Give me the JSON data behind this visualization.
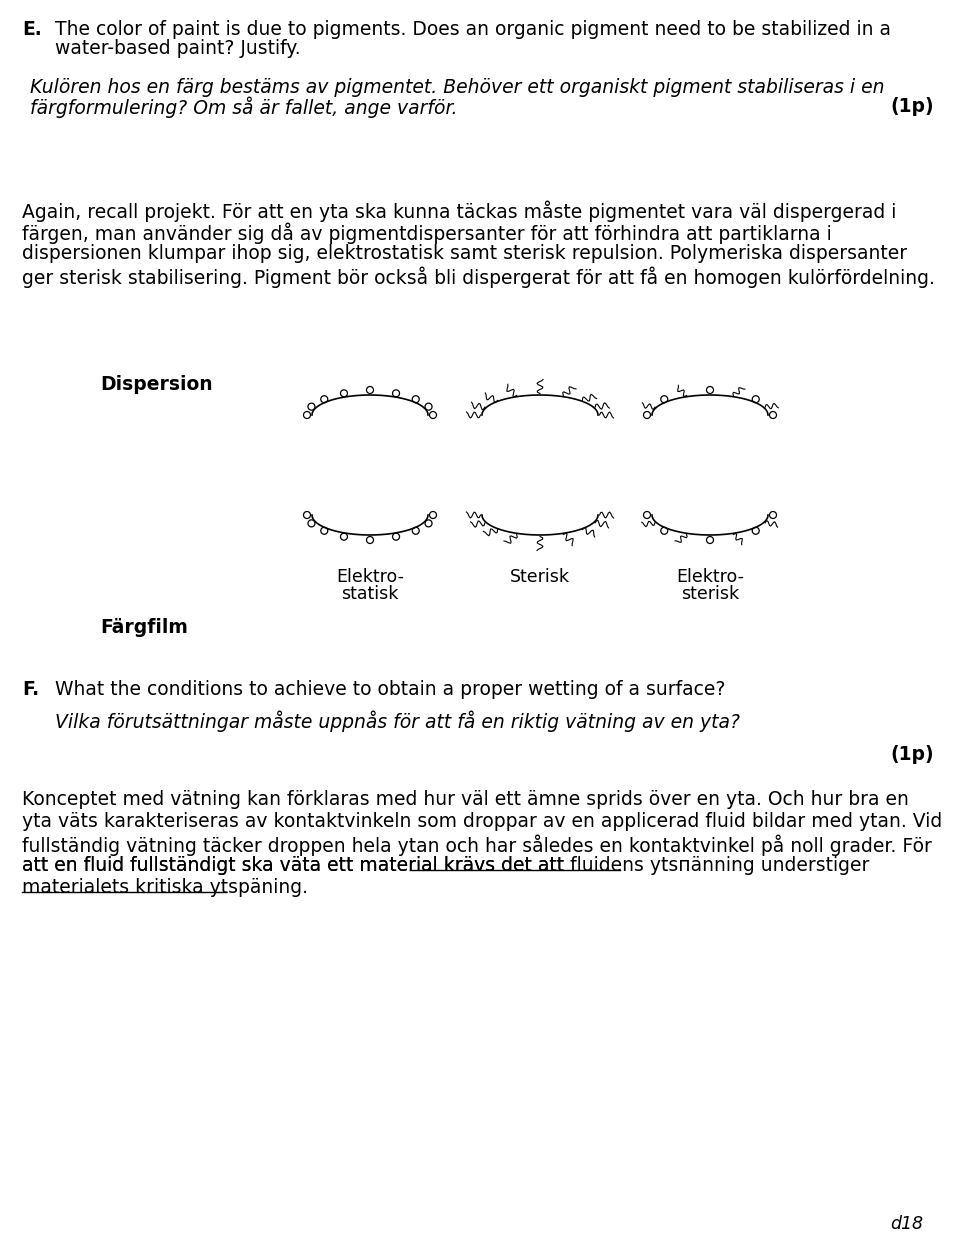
{
  "bg_color": "#ffffff",
  "section_E_label": "E.",
  "section_E_english_line1": "The color of paint is due to pigments. Does an organic pigment need to be stabilized in a",
  "section_E_english_line2": "water-based paint? Justify.",
  "section_E_swedish_line1": "Kulören hos en färg bestäms av pigmentet. Behöver ett organiskt pigment stabiliseras i en",
  "section_E_swedish_line2": "färgformulering? Om så är fallet, ange varför.",
  "section_E_points": "(1p)",
  "answer_line1": "Again, recall projekt. För att en yta ska kunna täckas måste pigmentet vara väl dispergerad i",
  "answer_line2": "färgen, man använder sig då av pigmentdispersanter för att förhindra att partiklarna i",
  "answer_line3": "dispersionen klumpar ihop sig, elektrostatisk samt sterisk repulsion. Polymeriska dispersanter",
  "answer_line4": "ger sterisk stabilisering. Pigment bör också bli dispergerat för att få en homogen kulörfördelning.",
  "dispersion_label": "Dispersion",
  "fargfilm_label": "Färgfilm",
  "label_elektrostatisk_1": "Elektro-",
  "label_elektrostatisk_2": "statisk",
  "label_sterisk": "Sterisk",
  "label_elektrosterisk_1": "Elektro-",
  "label_elektrosterisk_2": "sterisk",
  "section_F_label": "F.",
  "section_F_english": "What the conditions to achieve to obtain a proper wetting of a surface?",
  "section_F_swedish": "Vilka förutsättningar måste uppnås för att få en riktig vätning av en yta?",
  "section_F_points": "(1p)",
  "f_line1": "Konceptet med vätning kan förklaras med hur väl ett ämne sprids över en yta. Och hur bra en",
  "f_line2": "yta väts karakteriseras av kontaktvinkeln som droppar av en applicerad fluid bildar med ytan. Vid",
  "f_line3": "fullständig vätning täcker droppen hela ytan och har således en kontaktvinkel på noll grader. För",
  "f_line4a": "att en fluid fullständigt ska väta ett material krävs det att ",
  "f_line4b": "fluidens ytsпänning understiger",
  "f_line5": "materialets kritiska ytspäning",
  "f_line5end": ".",
  "page_label": "d18"
}
